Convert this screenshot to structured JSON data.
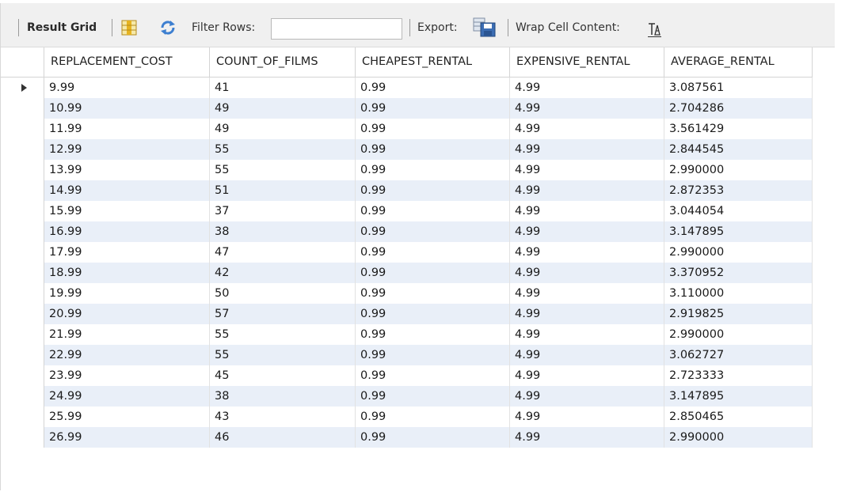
{
  "toolbar": {
    "result_grid_label": "Result Grid",
    "filter_rows_label": "Filter Rows:",
    "filter_rows_value": "",
    "export_label": "Export:",
    "wrap_cell_content_label": "Wrap Cell Content:",
    "icons": {
      "form_toggle": "grid-columns-icon",
      "refresh": "refresh-arrows-icon",
      "export": "save-disk-icon",
      "wrap": "wrap-text-icon"
    }
  },
  "grid": {
    "columns": [
      "REPLACEMENT_COST",
      "COUNT_OF_FILMS",
      "CHEAPEST_RENTAL",
      "EXPENSIVE_RENTAL",
      "AVERAGE_RENTAL"
    ],
    "rows": [
      [
        "9.99",
        "41",
        "0.99",
        "4.99",
        "3.087561"
      ],
      [
        "10.99",
        "49",
        "0.99",
        "4.99",
        "2.704286"
      ],
      [
        "11.99",
        "49",
        "0.99",
        "4.99",
        "3.561429"
      ],
      [
        "12.99",
        "55",
        "0.99",
        "4.99",
        "2.844545"
      ],
      [
        "13.99",
        "55",
        "0.99",
        "4.99",
        "2.990000"
      ],
      [
        "14.99",
        "51",
        "0.99",
        "4.99",
        "2.872353"
      ],
      [
        "15.99",
        "37",
        "0.99",
        "4.99",
        "3.044054"
      ],
      [
        "16.99",
        "38",
        "0.99",
        "4.99",
        "3.147895"
      ],
      [
        "17.99",
        "47",
        "0.99",
        "4.99",
        "2.990000"
      ],
      [
        "18.99",
        "42",
        "0.99",
        "4.99",
        "3.370952"
      ],
      [
        "19.99",
        "50",
        "0.99",
        "4.99",
        "3.110000"
      ],
      [
        "20.99",
        "57",
        "0.99",
        "4.99",
        "2.919825"
      ],
      [
        "21.99",
        "55",
        "0.99",
        "4.99",
        "2.990000"
      ],
      [
        "22.99",
        "55",
        "0.99",
        "4.99",
        "3.062727"
      ],
      [
        "23.99",
        "45",
        "0.99",
        "4.99",
        "2.723333"
      ],
      [
        "24.99",
        "38",
        "0.99",
        "4.99",
        "3.147895"
      ],
      [
        "25.99",
        "43",
        "0.99",
        "4.99",
        "2.850465"
      ],
      [
        "26.99",
        "46",
        "0.99",
        "4.99",
        "2.990000"
      ]
    ],
    "selected_row": 0,
    "colors": {
      "alt_row": "#e9eff8",
      "toolbar_bg": "#f0f0f0"
    }
  }
}
